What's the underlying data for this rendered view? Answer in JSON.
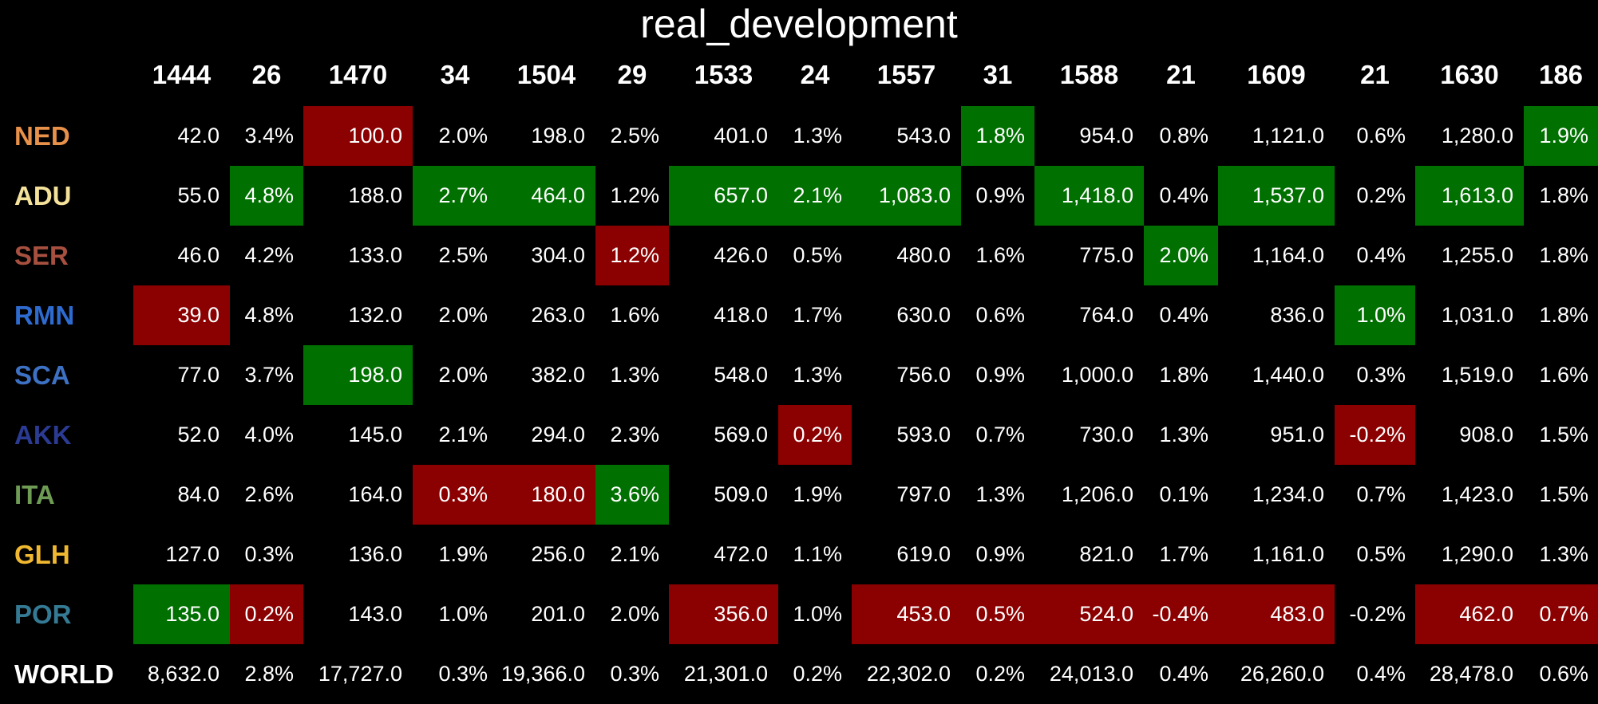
{
  "chart_data": {
    "type": "table",
    "title": "real_development",
    "columns": [
      "1444",
      "26",
      "1470",
      "34",
      "1504",
      "29",
      "1533",
      "24",
      "1557",
      "31",
      "1588",
      "21",
      "1609",
      "21",
      "1630",
      "186"
    ],
    "column_kinds": [
      "value",
      "growth",
      "value",
      "growth",
      "value",
      "growth",
      "value",
      "growth",
      "value",
      "growth",
      "value",
      "growth",
      "value",
      "growth",
      "value",
      "growth"
    ],
    "rows": [
      {
        "label": "NED",
        "label_color": "#e8914a",
        "cells": [
          "42.0",
          "3.4%",
          "100.0",
          "2.0%",
          "198.0",
          "2.5%",
          "401.0",
          "1.3%",
          "543.0",
          "1.8%",
          "954.0",
          "0.8%",
          "1,121.0",
          "0.6%",
          "1,280.0",
          "1.9%"
        ],
        "highlight": [
          "",
          "",
          "low",
          "",
          "",
          "",
          "",
          "",
          "",
          "high",
          "",
          "",
          "",
          "",
          "",
          "high"
        ]
      },
      {
        "label": "ADU",
        "label_color": "#f4e19a",
        "cells": [
          "55.0",
          "4.8%",
          "188.0",
          "2.7%",
          "464.0",
          "1.2%",
          "657.0",
          "2.1%",
          "1,083.0",
          "0.9%",
          "1,418.0",
          "0.4%",
          "1,537.0",
          "0.2%",
          "1,613.0",
          "1.8%"
        ],
        "highlight": [
          "",
          "high",
          "",
          "high",
          "high",
          "",
          "high",
          "high",
          "high",
          "",
          "high",
          "",
          "high",
          "",
          "high",
          ""
        ]
      },
      {
        "label": "SER",
        "label_color": "#a8503f",
        "cells": [
          "46.0",
          "4.2%",
          "133.0",
          "2.5%",
          "304.0",
          "1.2%",
          "426.0",
          "0.5%",
          "480.0",
          "1.6%",
          "775.0",
          "2.0%",
          "1,164.0",
          "0.4%",
          "1,255.0",
          "1.8%"
        ],
        "highlight": [
          "",
          "",
          "",
          "",
          "",
          "low",
          "",
          "",
          "",
          "",
          "",
          "high",
          "",
          "",
          "",
          ""
        ]
      },
      {
        "label": "RMN",
        "label_color": "#2e6bd0",
        "cells": [
          "39.0",
          "4.8%",
          "132.0",
          "2.0%",
          "263.0",
          "1.6%",
          "418.0",
          "1.7%",
          "630.0",
          "0.6%",
          "764.0",
          "0.4%",
          "836.0",
          "1.0%",
          "1,031.0",
          "1.8%"
        ],
        "highlight": [
          "low",
          "",
          "",
          "",
          "",
          "",
          "",
          "",
          "",
          "",
          "",
          "",
          "",
          "high",
          "",
          ""
        ]
      },
      {
        "label": "SCA",
        "label_color": "#3d71c4",
        "cells": [
          "77.0",
          "3.7%",
          "198.0",
          "2.0%",
          "382.0",
          "1.3%",
          "548.0",
          "1.3%",
          "756.0",
          "0.9%",
          "1,000.0",
          "1.8%",
          "1,440.0",
          "0.3%",
          "1,519.0",
          "1.6%"
        ],
        "highlight": [
          "",
          "",
          "high",
          "",
          "",
          "",
          "",
          "",
          "",
          "",
          "",
          "",
          "",
          "",
          "",
          ""
        ]
      },
      {
        "label": "AKK",
        "label_color": "#2b3b93",
        "cells": [
          "52.0",
          "4.0%",
          "145.0",
          "2.1%",
          "294.0",
          "2.3%",
          "569.0",
          "0.2%",
          "593.0",
          "0.7%",
          "730.0",
          "1.3%",
          "951.0",
          "-0.2%",
          "908.0",
          "1.5%"
        ],
        "highlight": [
          "",
          "",
          "",
          "",
          "",
          "",
          "",
          "low",
          "",
          "",
          "",
          "",
          "",
          "low",
          "",
          ""
        ]
      },
      {
        "label": "ITA",
        "label_color": "#6f9c55",
        "cells": [
          "84.0",
          "2.6%",
          "164.0",
          "0.3%",
          "180.0",
          "3.6%",
          "509.0",
          "1.9%",
          "797.0",
          "1.3%",
          "1,206.0",
          "0.1%",
          "1,234.0",
          "0.7%",
          "1,423.0",
          "1.5%"
        ],
        "highlight": [
          "",
          "",
          "",
          "low",
          "low",
          "high",
          "",
          "",
          "",
          "",
          "",
          "",
          "",
          "",
          "",
          ""
        ]
      },
      {
        "label": "GLH",
        "label_color": "#f0b830",
        "cells": [
          "127.0",
          "0.3%",
          "136.0",
          "1.9%",
          "256.0",
          "2.1%",
          "472.0",
          "1.1%",
          "619.0",
          "0.9%",
          "821.0",
          "1.7%",
          "1,161.0",
          "0.5%",
          "1,290.0",
          "1.3%"
        ],
        "highlight": [
          "",
          "",
          "",
          "",
          "",
          "",
          "",
          "",
          "",
          "",
          "",
          "",
          "",
          "",
          "",
          ""
        ]
      },
      {
        "label": "POR",
        "label_color": "#357a94",
        "cells": [
          "135.0",
          "0.2%",
          "143.0",
          "1.0%",
          "201.0",
          "2.0%",
          "356.0",
          "1.0%",
          "453.0",
          "0.5%",
          "524.0",
          "-0.4%",
          "483.0",
          "-0.2%",
          "462.0",
          "0.7%"
        ],
        "highlight": [
          "high",
          "low",
          "",
          "",
          "",
          "",
          "low",
          "",
          "low",
          "low",
          "low",
          "low",
          "low",
          "",
          "low",
          "low"
        ]
      },
      {
        "label": "WORLD",
        "label_color": "#ffffff",
        "cells": [
          "8,632.0",
          "2.8%",
          "17,727.0",
          "0.3%",
          "19,366.0",
          "0.3%",
          "21,301.0",
          "0.2%",
          "22,302.0",
          "0.2%",
          "24,013.0",
          "0.4%",
          "26,260.0",
          "0.4%",
          "28,478.0",
          "0.6%"
        ],
        "highlight": [
          "",
          "",
          "",
          "",
          "",
          "",
          "",
          "",
          "",
          "",
          "",
          "",
          "",
          "",
          "",
          ""
        ]
      }
    ],
    "colors": {
      "high": "#007000",
      "low": "#8b0000",
      "background": "#000000",
      "text": "#ffffff"
    }
  }
}
